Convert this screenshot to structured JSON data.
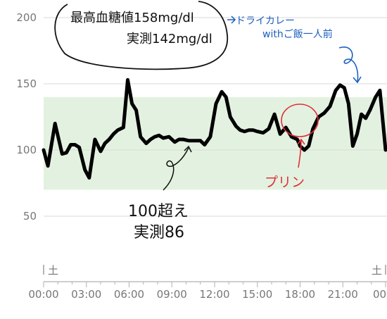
{
  "chart_data": {
    "type": "line",
    "y_ticks": [
      "200",
      "150",
      "100",
      "50"
    ],
    "x_ticks": [
      "00:00",
      "03:00",
      "06:00",
      "09:00",
      "12:00",
      "15:00",
      "18:00",
      "21:00",
      "00:"
    ],
    "day_labels": [
      "土",
      "土"
    ],
    "ylim": [
      30,
      210
    ],
    "xlim": [
      0,
      24
    ],
    "target_range": [
      70,
      140
    ],
    "grid": "horizontal",
    "colors": {
      "line": "#000000",
      "target_band": "#e3f2e0",
      "gridline": "#d9d9d9",
      "annotation_blue": "#1b5fbf",
      "annotation_red": "#e0303a"
    },
    "series": [
      {
        "x": [
          0,
          0.3,
          0.8,
          1.3,
          1.6,
          1.9,
          2.2,
          2.5,
          2.9,
          3.2,
          3.6,
          4.0,
          4.3,
          4.6,
          4.9,
          5.2,
          5.6,
          5.9,
          6.2,
          6.5,
          6.8,
          7.2,
          7.5,
          7.8,
          8.1,
          8.4,
          8.8,
          9.2,
          9.5,
          9.8,
          10.2,
          10.6,
          11.0,
          11.3,
          11.7,
          12.1,
          12.5,
          12.8,
          13.1,
          13.5,
          13.8,
          14.1,
          14.4,
          14.7,
          15.0,
          15.4,
          15.8,
          16.2,
          16.6,
          17.0,
          17.4,
          17.8,
          18.0,
          18.3,
          18.6,
          18.9,
          19.3,
          19.7,
          20.1,
          20.5,
          20.8,
          21.1,
          21.4,
          21.7,
          22.0,
          22.3,
          22.6,
          22.9,
          23.3,
          23.6,
          24.0
        ],
        "y": [
          100,
          88,
          120,
          97,
          98,
          104,
          104,
          102,
          85,
          79,
          108,
          99,
          105,
          108,
          112,
          115,
          117,
          153,
          135,
          130,
          110,
          105,
          108,
          110,
          111,
          109,
          110,
          106,
          108,
          108,
          107,
          107,
          107,
          104,
          110,
          135,
          144,
          140,
          125,
          118,
          115,
          114,
          115,
          115,
          114,
          113,
          116,
          127,
          112,
          117,
          110,
          108,
          103,
          100,
          103,
          116,
          125,
          128,
          133,
          145,
          149,
          147,
          135,
          103,
          112,
          127,
          124,
          130,
          140,
          145,
          100
        ]
      }
    ]
  },
  "annotations": {
    "bubble_line1": "最高血糖値158mg/dl",
    "bubble_line2": "実測142mg/dl",
    "blue_line1": "ドライカレー",
    "blue_line2": "withご飯一人前",
    "red_label": "プリン",
    "low_line1": "100超え",
    "low_line2": "実測86"
  }
}
